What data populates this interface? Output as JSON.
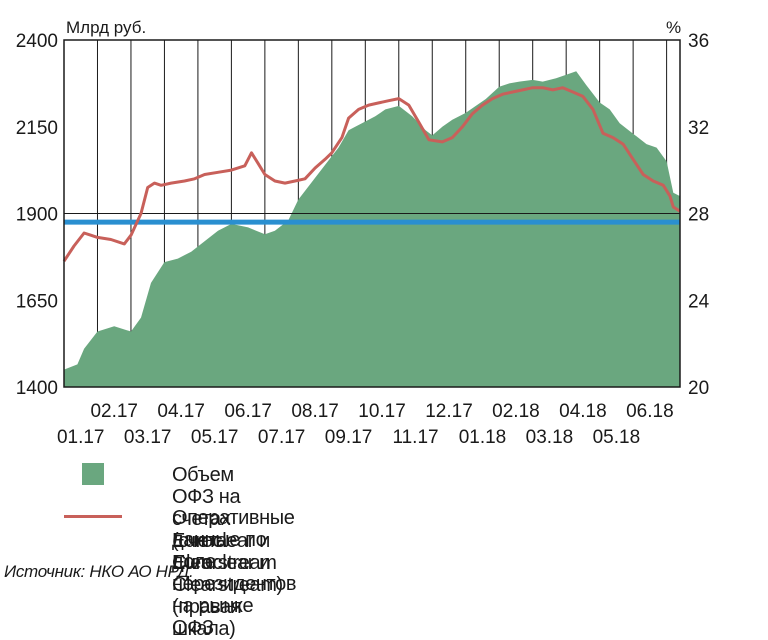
{
  "chart_data": {
    "type": "area",
    "left_axis_unit": "Млрд руб.",
    "right_axis_unit": "%",
    "left_ylim": [
      1400,
      2400
    ],
    "right_ylim": [
      20,
      36
    ],
    "left_ticks": [
      "2400",
      "2150",
      "1900",
      "1650",
      "1400"
    ],
    "right_ticks": [
      "36",
      "32",
      "28",
      "24",
      "20"
    ],
    "x_labels_top": [
      "02.17",
      "04.17",
      "06.17",
      "08.17",
      "10.17",
      "12.17",
      "02.18",
      "04.18",
      "06.18"
    ],
    "x_labels_bottom": [
      "01.17",
      "03.17",
      "05.17",
      "07.17",
      "09.17",
      "11.17",
      "01.18",
      "03.18",
      "05.18"
    ],
    "grid": "vertical lines per month, horizontal line at 1900",
    "legend_placement": "below chart",
    "colors": {
      "area": "#6aa77f",
      "line": "#c8605a",
      "reference": "#2a8fd0"
    },
    "reference_line_value": 1875,
    "series": [
      {
        "name": "Объем ОФЗ на счетах Euroclear и Clearstream",
        "axis": "left",
        "kind": "area",
        "x_month": [
          0,
          0.4,
          0.6,
          1.0,
          1.5,
          2.0,
          2.3,
          2.6,
          3.0,
          3.4,
          3.8,
          4.2,
          4.6,
          5.0,
          5.5,
          6.0,
          6.3,
          6.7,
          7.0,
          7.4,
          7.8,
          8.2,
          8.5,
          9.0,
          9.3,
          9.6,
          10.0,
          10.4,
          10.8,
          11.0,
          11.3,
          11.6,
          12.0,
          12.3,
          12.6,
          13.0,
          13.3,
          13.6,
          14.0,
          14.3,
          14.7,
          15.0,
          15.3,
          15.6,
          16.0,
          16.3,
          16.6,
          17.0,
          17.4,
          17.7,
          18.0,
          18.2,
          18.4
        ],
        "values": [
          1450,
          1465,
          1510,
          1560,
          1575,
          1560,
          1600,
          1700,
          1760,
          1770,
          1790,
          1820,
          1850,
          1870,
          1860,
          1840,
          1850,
          1880,
          1940,
          1990,
          2040,
          2090,
          2140,
          2165,
          2180,
          2200,
          2210,
          2180,
          2140,
          2125,
          2150,
          2170,
          2190,
          2210,
          2230,
          2265,
          2275,
          2280,
          2285,
          2280,
          2290,
          2300,
          2310,
          2270,
          2220,
          2200,
          2160,
          2130,
          2100,
          2090,
          2050,
          1960,
          1950
        ]
      },
      {
        "name": "Оперативные данные по доле нерезидентов на рынке ОФЗ (счета Euroclear и Clearstream) (правая шкала)",
        "axis": "right",
        "kind": "line",
        "x_month": [
          0,
          0.3,
          0.6,
          0.8,
          1.0,
          1.4,
          1.8,
          2.0,
          2.3,
          2.5,
          2.7,
          2.9,
          3.2,
          3.6,
          3.9,
          4.2,
          4.6,
          5.0,
          5.4,
          5.6,
          5.8,
          6.0,
          6.3,
          6.6,
          6.9,
          7.2,
          7.5,
          7.8,
          8.0,
          8.3,
          8.5,
          8.8,
          9.1,
          9.4,
          9.7,
          10.0,
          10.3,
          10.6,
          10.9,
          11.3,
          11.6,
          11.9,
          12.2,
          12.5,
          12.8,
          13.1,
          13.4,
          13.7,
          14.0,
          14.3,
          14.6,
          14.9,
          15.2,
          15.5,
          15.8,
          16.1,
          16.4,
          16.7,
          17.0,
          17.3,
          17.6,
          17.9,
          18.1,
          18.2,
          18.4
        ],
        "values": [
          25.8,
          26.5,
          27.1,
          27.0,
          26.9,
          26.8,
          26.6,
          27.0,
          28.0,
          29.2,
          29.4,
          29.3,
          29.4,
          29.5,
          29.6,
          29.8,
          29.9,
          30.0,
          30.2,
          30.8,
          30.3,
          29.8,
          29.5,
          29.4,
          29.5,
          29.6,
          30.1,
          30.5,
          30.8,
          31.5,
          32.4,
          32.8,
          33.0,
          33.1,
          33.2,
          33.3,
          33.0,
          32.2,
          31.4,
          31.3,
          31.5,
          32.0,
          32.6,
          33.0,
          33.3,
          33.5,
          33.6,
          33.7,
          33.8,
          33.8,
          33.7,
          33.8,
          33.6,
          33.4,
          32.8,
          31.7,
          31.5,
          31.2,
          30.5,
          29.8,
          29.5,
          29.3,
          28.8,
          28.3,
          28.1
        ]
      }
    ]
  },
  "legend": {
    "area_label": "Объем ОФЗ на счетах Euroclear и Clearstream",
    "line_label_1": "Оперативные данные по доле нерезидентов на рынке ОФЗ",
    "line_label_2": "(счета Euroclear и Clearstream) (правая шкала)"
  },
  "source": "Источник: НКО АО НРД."
}
